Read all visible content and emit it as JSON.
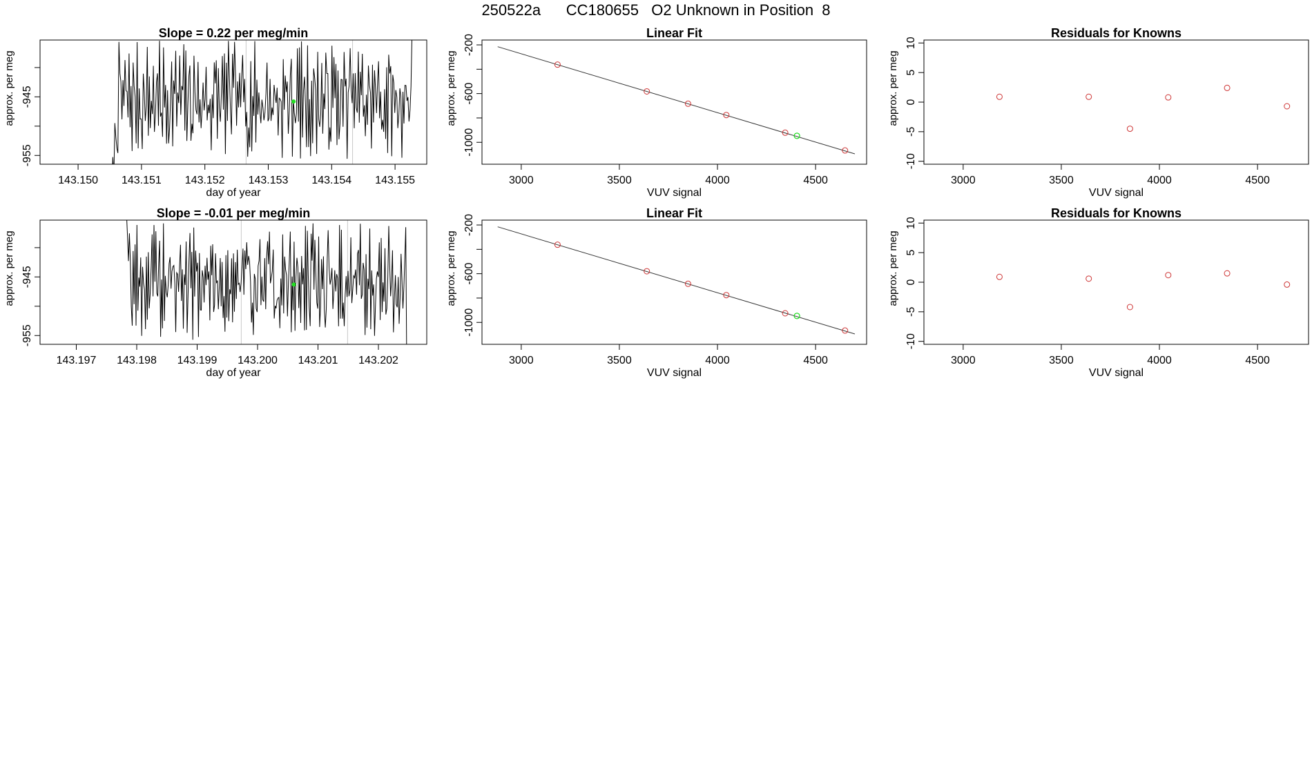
{
  "figure_title": "250522a      CC180655   O2 Unknown in Position  8",
  "chart_data": [
    {
      "id": "ts1",
      "type": "line",
      "title": "Slope =  0.22  per meg/min",
      "xlabel": "day of year",
      "ylabel": "approx. per meg",
      "xlim": [
        143.1494,
        143.1555
      ],
      "ylim": [
        -956.5,
        -935.3
      ],
      "x_ticks": [
        143.15,
        143.151,
        143.152,
        143.153,
        143.154,
        143.155
      ],
      "x_tick_labels": [
        "143.150",
        "143.151",
        "143.152",
        "143.153",
        "143.154",
        "143.155"
      ],
      "y_ticks": [
        -955,
        -950,
        -945,
        -940
      ],
      "y_tick_labels": [
        "-955",
        "",
        "-945",
        ""
      ],
      "vlines": [
        143.15265,
        143.15433
      ],
      "marker_green": [
        143.1534,
        -945.8
      ],
      "series": [
        {
          "color": "#000000",
          "x_start": 143.1505,
          "x_end": 143.1553,
          "noise_seed": 7,
          "ramp_from": -965,
          "level": -945.5,
          "amplitude": 7.5,
          "end_value": -934
        }
      ]
    },
    {
      "id": "fit1",
      "type": "scatter",
      "title": "Linear Fit",
      "xlabel": "VUV signal",
      "ylabel": "approx. per meg",
      "xlim": [
        2800,
        4760
      ],
      "ylim": [
        -1180,
        -160
      ],
      "x_ticks": [
        3000,
        3500,
        4000,
        4500
      ],
      "x_tick_labels": [
        "3000",
        "3500",
        "4000",
        "4500"
      ],
      "y_ticks": [
        -1000,
        -800,
        -600,
        -400,
        -200
      ],
      "y_tick_labels": [
        "-1000",
        "",
        "-600",
        "",
        "-200"
      ],
      "line": {
        "x": [
          2880,
          4700
        ],
        "y": [
          -215,
          -1095
        ]
      },
      "points": {
        "x": [
          3185,
          3640,
          3850,
          4045,
          4345,
          4650
        ],
        "y": [
          -362,
          -582,
          -683,
          -776,
          -921,
          -1067
        ],
        "color": "#cd3333"
      },
      "unknown_points": {
        "x": [
          4405
        ],
        "y": [
          -947
        ],
        "color": "#22dd22"
      }
    },
    {
      "id": "res1",
      "type": "scatter",
      "title": "Residuals for Knowns",
      "xlabel": "VUV signal",
      "ylabel": "approx. per meg",
      "xlim": [
        2800,
        4760
      ],
      "ylim": [
        -10.5,
        10.5
      ],
      "x_ticks": [
        3000,
        3500,
        4000,
        4500
      ],
      "x_tick_labels": [
        "3000",
        "3500",
        "4000",
        "4500"
      ],
      "y_ticks": [
        -10,
        -5,
        0,
        5,
        10
      ],
      "y_tick_labels": [
        "-10",
        "-5",
        "0",
        "5",
        "10"
      ],
      "points": {
        "x": [
          3185,
          3640,
          3850,
          4045,
          4345,
          4650
        ],
        "y": [
          0.9,
          0.9,
          -4.5,
          0.8,
          2.4,
          -0.7
        ],
        "color": "#cd3333"
      }
    },
    {
      "id": "ts2",
      "type": "line",
      "title": "Slope =  -0.01  per meg/min",
      "xlabel": "day of year",
      "ylabel": "approx. per meg",
      "xlim": [
        143.1964,
        143.2028
      ],
      "ylim": [
        -956.5,
        -935.3
      ],
      "x_ticks": [
        143.197,
        143.198,
        143.199,
        143.2,
        143.201,
        143.202
      ],
      "x_tick_labels": [
        "143.197",
        "143.198",
        "143.199",
        "143.200",
        "143.201",
        "143.202"
      ],
      "y_ticks": [
        -955,
        -950,
        -945,
        -940
      ],
      "y_tick_labels": [
        "-955",
        "",
        "-945",
        ""
      ],
      "vlines": [
        143.19973,
        143.20149
      ],
      "marker_green": [
        143.2006,
        -946.3
      ],
      "series": [
        {
          "color": "#000000",
          "x_start": 143.1978,
          "x_end": 143.2025,
          "noise_seed": 19,
          "ramp_from": -932,
          "level": -945.8,
          "amplitude": 7.5,
          "end_value": -960
        }
      ]
    },
    {
      "id": "fit2",
      "type": "scatter",
      "title": "Linear Fit",
      "xlabel": "VUV signal",
      "ylabel": "approx. per meg",
      "xlim": [
        2800,
        4760
      ],
      "ylim": [
        -1180,
        -160
      ],
      "x_ticks": [
        3000,
        3500,
        4000,
        4500
      ],
      "x_tick_labels": [
        "3000",
        "3500",
        "4000",
        "4500"
      ],
      "y_ticks": [
        -1000,
        -800,
        -600,
        -400,
        -200
      ],
      "y_tick_labels": [
        "-1000",
        "",
        "-600",
        "",
        "-200"
      ],
      "line": {
        "x": [
          2880,
          4700
        ],
        "y": [
          -215,
          -1095
        ]
      },
      "points": {
        "x": [
          3185,
          3640,
          3850,
          4045,
          4345,
          4650
        ],
        "y": [
          -362,
          -580,
          -683,
          -776,
          -925,
          -1067
        ],
        "color": "#cd3333"
      },
      "unknown_points": {
        "x": [
          4405
        ],
        "y": [
          -947
        ],
        "color": "#22dd22"
      }
    },
    {
      "id": "res2",
      "type": "scatter",
      "title": "Residuals for Knowns",
      "xlabel": "VUV signal",
      "ylabel": "approx. per meg",
      "xlim": [
        2800,
        4760
      ],
      "ylim": [
        -10.5,
        10.5
      ],
      "x_ticks": [
        3000,
        3500,
        4000,
        4500
      ],
      "x_tick_labels": [
        "3000",
        "3500",
        "4000",
        "4500"
      ],
      "y_ticks": [
        -10,
        -5,
        0,
        5,
        10
      ],
      "y_tick_labels": [
        "-10",
        "-5",
        "0",
        "5",
        "10"
      ],
      "points": {
        "x": [
          3185,
          3640,
          3850,
          4045,
          4345,
          4650
        ],
        "y": [
          0.9,
          0.6,
          -4.2,
          1.2,
          1.5,
          -0.4
        ],
        "color": "#cd3333"
      }
    }
  ]
}
